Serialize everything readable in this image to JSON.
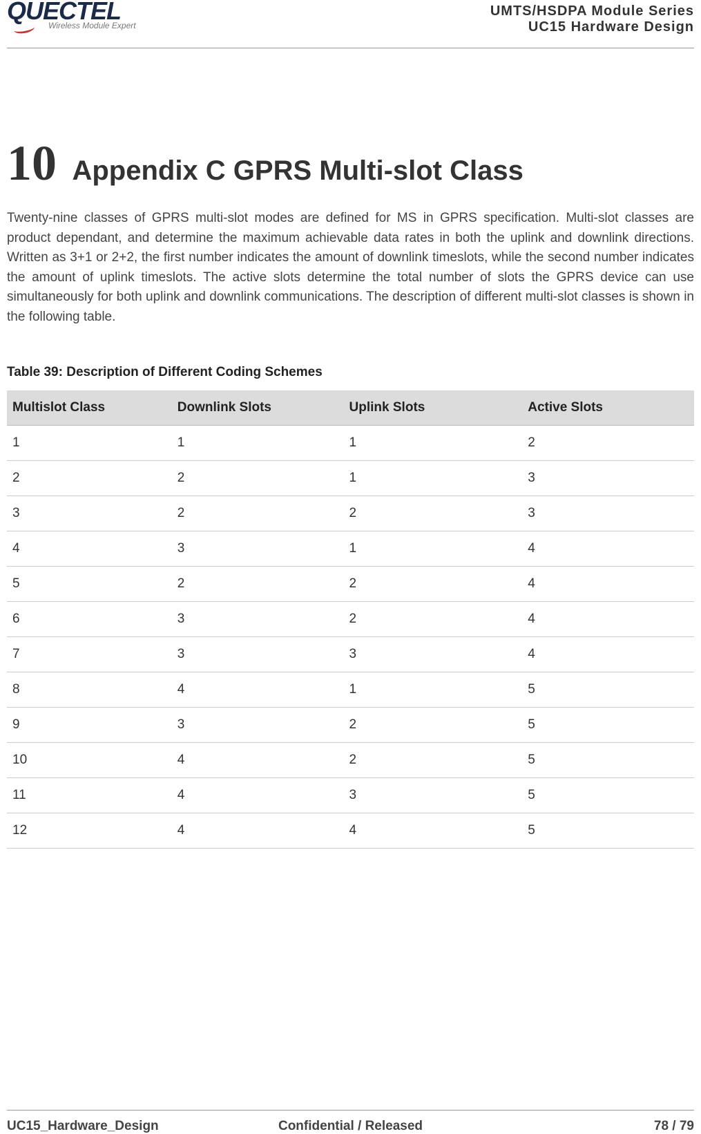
{
  "header": {
    "logo_main": "QUECTEL",
    "logo_sub": "Wireless Module Expert",
    "right_line1": "UMTS/HSDPA Module Series",
    "right_line2": "UC15 Hardware Design"
  },
  "chapter": {
    "number": "10",
    "title": "Appendix C GPRS Multi-slot Class"
  },
  "paragraph": "Twenty-nine classes of GPRS multi-slot modes are defined for MS in GPRS specification. Multi-slot classes are product dependant, and determine the maximum achievable data rates in both the uplink and downlink directions. Written as 3+1 or 2+2, the first number indicates the amount of downlink timeslots, while the second number indicates the amount of uplink timeslots. The active slots determine the total number of slots the GPRS device can use simultaneously for both uplink and downlink communications. The description of different multi-slot classes is shown in the following table.",
  "table": {
    "caption": "Table 39: Description of Different Coding Schemes",
    "columns": [
      "Multislot Class",
      "Downlink Slots",
      "Uplink Slots",
      "Active Slots"
    ],
    "rows": [
      [
        "1",
        "1",
        "1",
        "2"
      ],
      [
        "2",
        "2",
        "1",
        "3"
      ],
      [
        "3",
        "2",
        "2",
        "3"
      ],
      [
        "4",
        "3",
        "1",
        "4"
      ],
      [
        "5",
        "2",
        "2",
        "4"
      ],
      [
        "6",
        "3",
        "2",
        "4"
      ],
      [
        "7",
        "3",
        "3",
        "4"
      ],
      [
        "8",
        "4",
        "1",
        "5"
      ],
      [
        "9",
        "3",
        "2",
        "5"
      ],
      [
        "10",
        "4",
        "2",
        "5"
      ],
      [
        "11",
        "4",
        "3",
        "5"
      ],
      [
        "12",
        "4",
        "4",
        "5"
      ]
    ],
    "header_bg": "#dcdcdc",
    "border_color": "#cccccc",
    "font_size_pt": 14
  },
  "footer": {
    "left": "UC15_Hardware_Design",
    "center": "Confidential / Released",
    "right": "78 / 79"
  },
  "colors": {
    "text": "#333333",
    "rule": "#999999",
    "logo_dark": "#1a2a4a",
    "logo_accent": "#cc3333"
  }
}
